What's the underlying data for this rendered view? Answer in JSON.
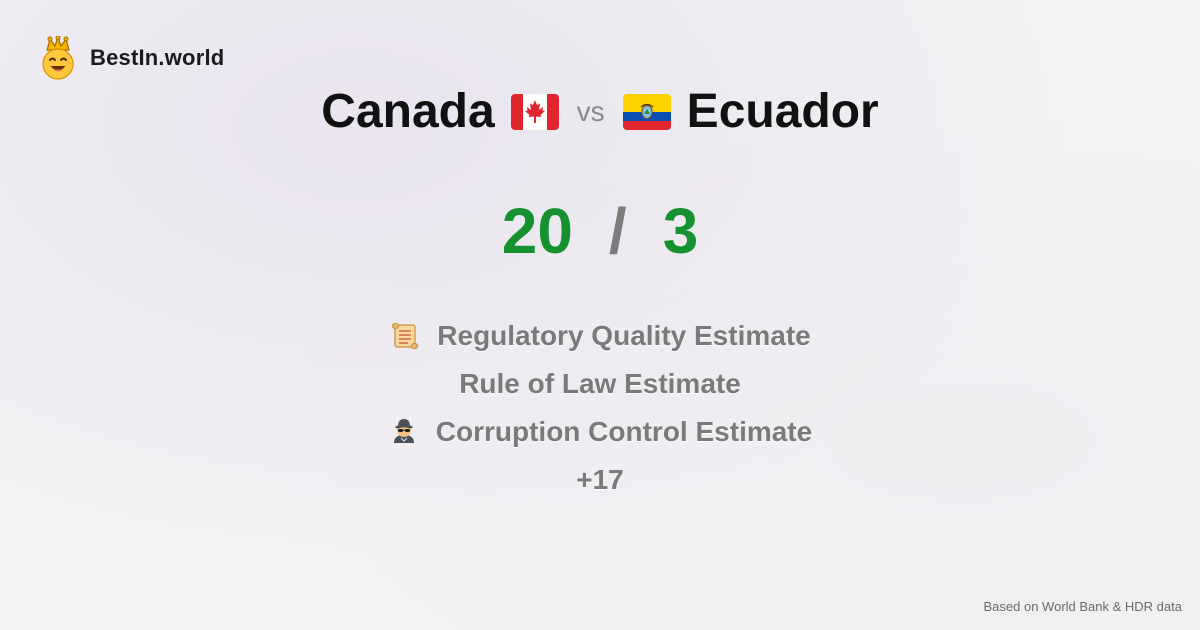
{
  "brand": {
    "name": "BestIn.world",
    "logo_icon": "crown-smiley-icon"
  },
  "title": {
    "country_a": "Canada",
    "flag_a": "canada-flag-icon",
    "vs": "vs",
    "flag_b": "ecuador-flag-icon",
    "country_b": "Ecuador"
  },
  "score": {
    "a": "20",
    "separator": "/",
    "b": "3"
  },
  "metrics": [
    {
      "icon": "scroll-icon",
      "label": "Regulatory Quality Estimate"
    },
    {
      "icon": "",
      "label": "Rule of Law Estimate"
    },
    {
      "icon": "detective-icon",
      "label": "Corruption Control Estimate"
    },
    {
      "icon": "",
      "label": "+17"
    }
  ],
  "footer": {
    "source": "Based on World Bank & HDR data"
  },
  "colors": {
    "score_green": "#15922f",
    "muted_gray": "#7a7a7a",
    "background": "#f2f1f3"
  }
}
